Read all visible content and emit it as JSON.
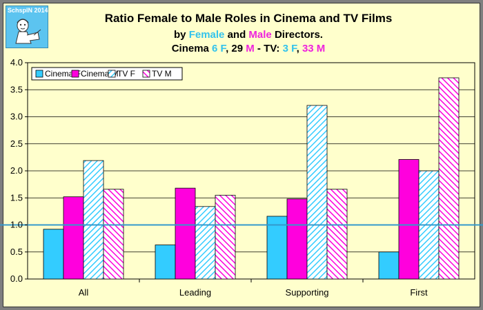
{
  "logo": {
    "text": "SchspIN 2014"
  },
  "title": {
    "line1": "Ratio Female to Male Roles in Cinema and TV Films",
    "line2_prefix": "by ",
    "line2_female": "Female",
    "line2_mid": " and ",
    "line2_male": "Male",
    "line2_suffix": " Directors.",
    "line3_cinema": "Cinema ",
    "line3_cinema_f": "6 F",
    "line3_sep1": ", 29 ",
    "line3_cinema_m": "M",
    "line3_tv": " - TV: ",
    "line3_tv_f": "3 F",
    "line3_sep2": ", ",
    "line3_tv_m": "33 M"
  },
  "colors": {
    "background": "#ffffcc",
    "cinema_f": "#33ccff",
    "cinema_m": "#ff00dd",
    "tv_f_hatch": "#33ccff",
    "tv_m_hatch": "#ff00dd",
    "reference_line": "#3399cc"
  },
  "chart_data": {
    "type": "bar",
    "categories": [
      "All",
      "Leading",
      "Supporting",
      "First"
    ],
    "series": [
      {
        "name": "Cinema F",
        "values": [
          0.92,
          0.63,
          1.16,
          0.5
        ],
        "fill": "solid",
        "color": "#33ccff"
      },
      {
        "name": "Cinema M",
        "values": [
          1.52,
          1.68,
          1.48,
          2.21
        ],
        "fill": "solid",
        "color": "#ff00dd"
      },
      {
        "name": "TV F",
        "values": [
          2.19,
          1.34,
          3.21,
          2.0
        ],
        "fill": "hatched",
        "color": "#33ccff"
      },
      {
        "name": "TV M",
        "values": [
          1.66,
          1.55,
          1.66,
          3.72
        ],
        "fill": "hatched",
        "color": "#ff00dd"
      }
    ],
    "ylim": [
      0,
      4.0
    ],
    "yticks": [
      "0.0",
      "0.5",
      "1.0",
      "1.5",
      "2.0",
      "2.5",
      "3.0",
      "3.5",
      "4.0"
    ],
    "reference_line": 1.0,
    "grid": "horizontal",
    "legend": "top-left"
  }
}
